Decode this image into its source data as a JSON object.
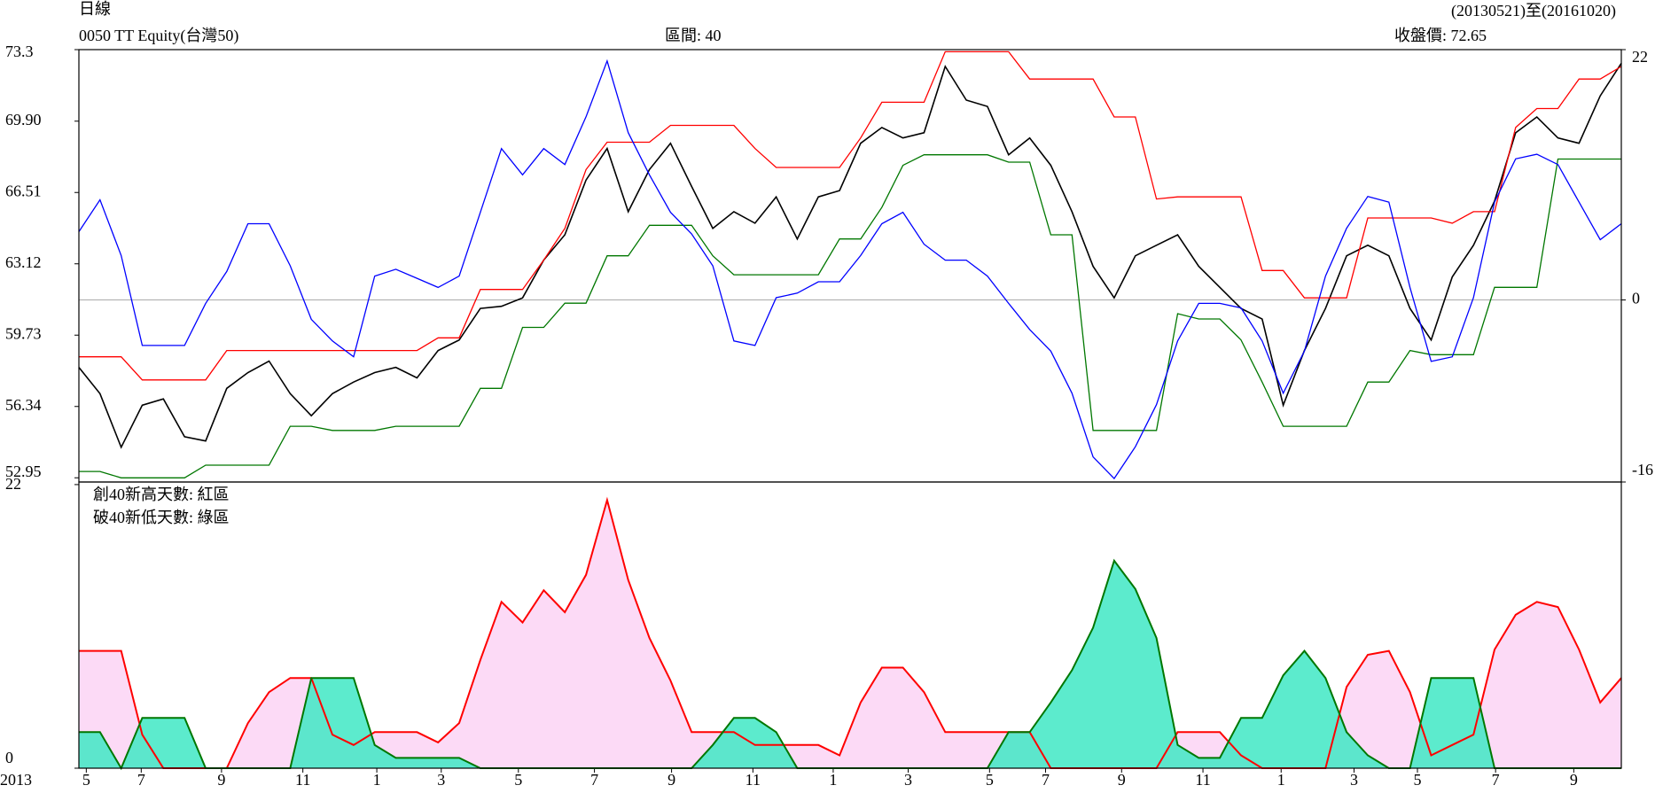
{
  "chart_data": [
    {
      "type": "line",
      "period": "日線",
      "title": "0050 TT Equity(台灣50)",
      "interval": "區間: 40",
      "date_range": "(20130521)至(20161020)",
      "close_label": "收盤價: 72.65",
      "xlim": [
        0,
        73
      ],
      "ylim": [
        52.75,
        73.3
      ],
      "yticks": [
        73.3,
        {
          "value": 69.9,
          "label": "69.90"
        },
        66.51,
        63.12,
        59.73,
        56.34,
        52.95
      ],
      "y2lim": [
        -16,
        22
      ],
      "y2ticks": [
        22,
        0,
        -16
      ],
      "zero_line": true,
      "series": [
        {
          "name": "close",
          "color": "#000000",
          "values": [
            58.2,
            56.95,
            54.4,
            56.4,
            56.7,
            54.9,
            54.7,
            57.2,
            57.95,
            58.5,
            56.95,
            55.9,
            56.95,
            57.5,
            57.95,
            58.2,
            57.7,
            59.0,
            59.5,
            61.0,
            61.1,
            61.5,
            63.3,
            64.5,
            67.1,
            68.6,
            65.6,
            67.6,
            68.85,
            66.8,
            64.8,
            65.6,
            65.05,
            66.3,
            64.3,
            66.3,
            66.6,
            68.85,
            69.6,
            69.1,
            69.35,
            72.5,
            70.9,
            70.6,
            68.3,
            69.1,
            67.8,
            65.6,
            63.0,
            61.5,
            63.5,
            64.0,
            64.5,
            63.0,
            62.0,
            61.0,
            60.5,
            56.4,
            59.0,
            61.0,
            63.5,
            64.0,
            63.5,
            61.0,
            59.5,
            62.5,
            64.0,
            66.1,
            69.35,
            70.1,
            69.1,
            68.85,
            71.1,
            72.65
          ]
        },
        {
          "name": "high",
          "color": "#ff0000",
          "values": [
            58.7,
            58.7,
            58.7,
            57.6,
            57.6,
            57.6,
            57.6,
            59.0,
            59.0,
            59.0,
            59.0,
            59.0,
            59.0,
            59.0,
            59.0,
            59.0,
            59.0,
            59.6,
            59.6,
            61.9,
            61.9,
            61.9,
            63.3,
            64.8,
            67.6,
            68.9,
            68.9,
            68.9,
            69.7,
            69.7,
            69.7,
            69.7,
            68.6,
            67.7,
            67.7,
            67.7,
            67.7,
            69.1,
            70.8,
            70.8,
            70.8,
            73.2,
            73.2,
            73.2,
            73.2,
            71.9,
            71.9,
            71.9,
            71.9,
            70.1,
            70.1,
            66.2,
            66.3,
            66.3,
            66.3,
            66.3,
            62.8,
            62.8,
            61.5,
            61.5,
            61.5,
            65.3,
            65.3,
            65.3,
            65.3,
            65.05,
            65.6,
            65.6,
            69.6,
            70.5,
            70.5,
            71.9,
            71.9,
            72.5
          ]
        },
        {
          "name": "low",
          "color": "#007700",
          "values": [
            53.25,
            53.25,
            52.95,
            52.95,
            52.95,
            52.95,
            53.55,
            53.55,
            53.55,
            53.55,
            55.4,
            55.4,
            55.2,
            55.2,
            55.2,
            55.4,
            55.4,
            55.4,
            55.4,
            57.2,
            57.2,
            60.1,
            60.1,
            61.25,
            61.25,
            63.5,
            63.5,
            64.95,
            64.95,
            64.95,
            63.5,
            62.6,
            62.6,
            62.6,
            62.6,
            62.6,
            64.3,
            64.3,
            65.8,
            67.8,
            68.3,
            68.3,
            68.3,
            68.3,
            67.95,
            67.95,
            64.5,
            64.5,
            55.2,
            55.2,
            55.2,
            55.2,
            60.75,
            60.5,
            60.5,
            59.5,
            57.5,
            55.4,
            55.4,
            55.4,
            55.4,
            57.5,
            57.5,
            59.0,
            58.8,
            58.8,
            58.8,
            62.0,
            62.0,
            62.0,
            68.1,
            68.1,
            68.1,
            68.1
          ]
        },
        {
          "name": "net",
          "color": "#0000ff",
          "axis": "y2",
          "values": [
            6.0,
            8.8,
            3.9,
            -4.0,
            -4.0,
            -4.0,
            -0.3,
            2.5,
            6.7,
            6.7,
            3.0,
            -1.7,
            -3.6,
            -5.0,
            2.1,
            2.7,
            1.9,
            1.1,
            2.1,
            7.7,
            13.3,
            11.0,
            13.3,
            11.9,
            16.1,
            21.0,
            14.7,
            11.0,
            7.7,
            5.8,
            3.0,
            -3.6,
            -4.0,
            0.2,
            0.6,
            1.6,
            1.6,
            3.9,
            6.7,
            7.7,
            4.9,
            3.5,
            3.5,
            2.1,
            -0.3,
            -2.6,
            -4.5,
            -8.2,
            -13.8,
            -15.7,
            -12.9,
            -9.2,
            -3.6,
            -0.3,
            -0.3,
            -0.7,
            -3.6,
            -8.2,
            -4.5,
            2.1,
            6.3,
            9.1,
            8.6,
            1.1,
            -5.4,
            -5.0,
            0.2,
            8.6,
            12.4,
            12.8,
            11.9,
            8.6,
            5.3,
            6.7
          ]
        }
      ]
    },
    {
      "type": "area",
      "annotations": [
        "創40新高天數: 紅區",
        "破40新低天數: 綠區"
      ],
      "year_label": "2013",
      "xlim": [
        0,
        73
      ],
      "xticks": [
        {
          "value": 0.35,
          "label": "5"
        },
        {
          "value": 2.95,
          "label": "7"
        },
        {
          "value": 6.75,
          "label": "9"
        },
        {
          "value": 10.6,
          "label": "11"
        },
        {
          "value": 14.1,
          "label": "1"
        },
        {
          "value": 17.15,
          "label": "3"
        },
        {
          "value": 20.8,
          "label": "5"
        },
        {
          "value": 24.4,
          "label": "7"
        },
        {
          "value": 28.05,
          "label": "9"
        },
        {
          "value": 31.9,
          "label": "11"
        },
        {
          "value": 35.7,
          "label": "1"
        },
        {
          "value": 39.25,
          "label": "3"
        },
        {
          "value": 43.1,
          "label": "5"
        },
        {
          "value": 45.75,
          "label": "7"
        },
        {
          "value": 49.35,
          "label": "9"
        },
        {
          "value": 53.2,
          "label": "11"
        },
        {
          "value": 56.9,
          "label": "1"
        },
        {
          "value": 60.35,
          "label": "3"
        },
        {
          "value": 63.35,
          "label": "5"
        },
        {
          "value": 67.05,
          "label": "7"
        },
        {
          "value": 70.75,
          "label": "9"
        }
      ],
      "ylim": [
        0,
        22.2
      ],
      "yticks": [
        22,
        0
      ],
      "series": [
        {
          "name": "new-high-days",
          "color": "#ff0000",
          "fill": "#fcd4f4",
          "values": [
            9.1,
            9.1,
            9.1,
            2.6,
            0,
            0,
            0,
            0,
            3.5,
            5.9,
            7.0,
            7.0,
            2.6,
            1.8,
            2.8,
            2.8,
            2.8,
            2.0,
            3.5,
            8.4,
            12.9,
            11.3,
            13.8,
            12.1,
            15.0,
            20.8,
            14.6,
            10.1,
            6.8,
            2.8,
            2.8,
            2.8,
            1.8,
            1.8,
            1.8,
            1.8,
            1.0,
            5.1,
            7.8,
            7.8,
            5.9,
            2.8,
            2.8,
            2.8,
            2.8,
            2.8,
            0,
            0,
            0,
            0,
            0,
            0,
            2.8,
            2.8,
            2.8,
            1.0,
            0,
            0,
            0,
            0,
            6.3,
            8.8,
            9.1,
            5.9,
            1.0,
            1.8,
            2.6,
            9.2,
            11.9,
            12.9,
            12.5,
            9.2,
            5.1,
            7.0
          ]
        },
        {
          "name": "new-low-days",
          "color": "#007700",
          "fill": "#40e8c4",
          "values": [
            2.8,
            2.8,
            0,
            3.9,
            3.9,
            3.9,
            0,
            0,
            0,
            0,
            0,
            7.0,
            7.0,
            7.0,
            1.8,
            0.8,
            0.8,
            0.8,
            0.8,
            0,
            0,
            0,
            0,
            0,
            0,
            0,
            0,
            0,
            0,
            0,
            1.8,
            3.9,
            3.9,
            2.8,
            0,
            0,
            0,
            0,
            0,
            0,
            0,
            0,
            0,
            0,
            2.8,
            2.8,
            5.1,
            7.6,
            10.9,
            16.1,
            13.9,
            10.1,
            1.8,
            0.8,
            0.8,
            3.9,
            3.9,
            7.2,
            9.1,
            7.0,
            2.8,
            1.0,
            0,
            0,
            7.0,
            7.0,
            7.0,
            0,
            0,
            0,
            0,
            0,
            0,
            0
          ]
        }
      ]
    }
  ]
}
